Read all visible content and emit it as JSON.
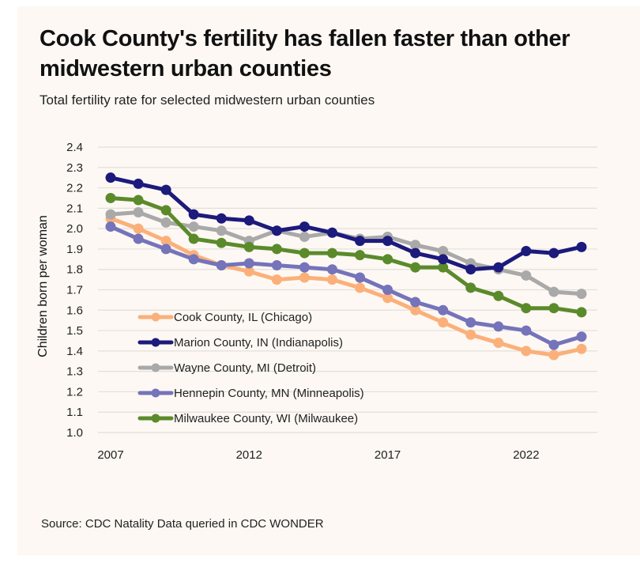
{
  "header": {
    "title": "Cook County's fertility has fallen faster than other midwestern urban counties",
    "subtitle": "Total fertility rate for selected midwestern urban counties"
  },
  "footer": {
    "source": "Source: CDC Natality Data queried in CDC WONDER"
  },
  "chart_data": {
    "type": "line",
    "title": "Cook County's fertility has fallen faster than other midwestern urban counties",
    "subtitle": "Total fertility rate for selected midwestern urban counties",
    "xlabel": "",
    "ylabel": "Children born per woman",
    "ylim": [
      1.0,
      2.4
    ],
    "yticks": [
      "1.0",
      "1.1",
      "1.2",
      "1.3",
      "1.4",
      "1.5",
      "1.6",
      "1.7",
      "1.8",
      "1.9",
      "2.0",
      "2.1",
      "2.2",
      "2.3",
      "2.4"
    ],
    "xlim": [
      2007,
      2024
    ],
    "xticks": [
      "2007",
      "2012",
      "2017",
      "2022"
    ],
    "grid": "horizontal",
    "legend_position": "bottom-left-inside",
    "x": [
      2007,
      2008,
      2009,
      2010,
      2011,
      2012,
      2013,
      2014,
      2015,
      2016,
      2017,
      2018,
      2019,
      2020,
      2021,
      2022,
      2023,
      2024
    ],
    "series": [
      {
        "name": "Cook County, IL (Chicago)",
        "color": "#fbb07a",
        "values": [
          2.05,
          2.0,
          1.94,
          1.87,
          1.82,
          1.79,
          1.75,
          1.76,
          1.75,
          1.71,
          1.66,
          1.6,
          1.54,
          1.48,
          1.44,
          1.4,
          1.38,
          1.41
        ]
      },
      {
        "name": "Marion County, IN (Indianapolis)",
        "color": "#1c1a7c",
        "values": [
          2.25,
          2.22,
          2.19,
          2.07,
          2.05,
          2.04,
          1.99,
          2.01,
          1.98,
          1.94,
          1.94,
          1.88,
          1.85,
          1.8,
          1.81,
          1.89,
          1.88,
          1.91
        ]
      },
      {
        "name": "Wayne County, MI (Detroit)",
        "color": "#a9a9a9",
        "values": [
          2.07,
          2.08,
          2.03,
          2.01,
          1.99,
          1.94,
          1.99,
          1.96,
          1.98,
          1.95,
          1.96,
          1.92,
          1.89,
          1.83,
          1.8,
          1.77,
          1.69,
          1.68
        ]
      },
      {
        "name": "Hennepin County, MN (Minneapolis)",
        "color": "#7573b9",
        "values": [
          2.01,
          1.95,
          1.9,
          1.85,
          1.82,
          1.83,
          1.82,
          1.81,
          1.8,
          1.76,
          1.7,
          1.64,
          1.6,
          1.54,
          1.52,
          1.5,
          1.43,
          1.47
        ]
      },
      {
        "name": "Milwaukee County, WI (Milwaukee)",
        "color": "#5b8a2b",
        "values": [
          2.15,
          2.14,
          2.09,
          1.95,
          1.93,
          1.91,
          1.9,
          1.88,
          1.88,
          1.87,
          1.85,
          1.81,
          1.81,
          1.71,
          1.67,
          1.61,
          1.61,
          1.59
        ]
      }
    ]
  }
}
